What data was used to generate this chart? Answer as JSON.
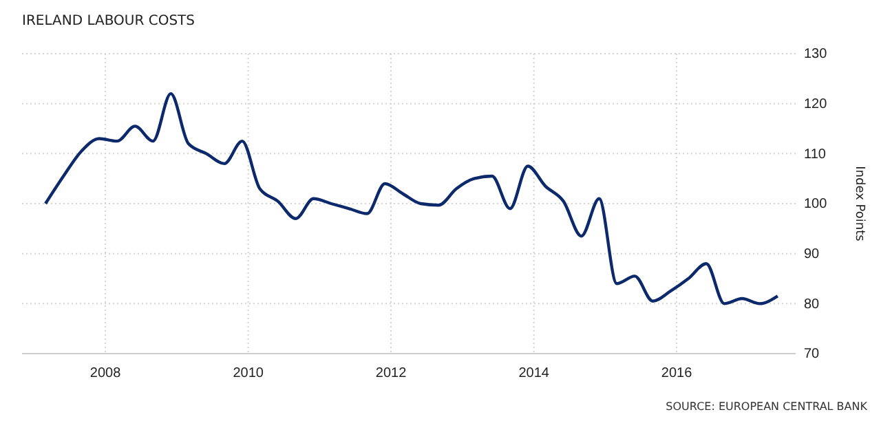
{
  "chart_data": {
    "type": "line",
    "title": "IRELAND LABOUR COSTS",
    "ylabel": "Index Points",
    "x": [
      "2007-03",
      "2007-06",
      "2007-09",
      "2007-12",
      "2008-03",
      "2008-06",
      "2008-09",
      "2008-12",
      "2009-03",
      "2009-06",
      "2009-09",
      "2009-12",
      "2010-03",
      "2010-06",
      "2010-09",
      "2010-12",
      "2011-03",
      "2011-06",
      "2011-09",
      "2011-12",
      "2012-03",
      "2012-06",
      "2012-09",
      "2012-12",
      "2013-03",
      "2013-06",
      "2013-09",
      "2013-12",
      "2014-03",
      "2014-06",
      "2014-09",
      "2014-12",
      "2015-03",
      "2015-06",
      "2015-09",
      "2015-12",
      "2016-03",
      "2016-06",
      "2016-09",
      "2016-12",
      "2017-03",
      "2017-06"
    ],
    "series": [
      {
        "color": "#0c2a6b",
        "values": [
          100,
          105.5,
          110.5,
          113,
          112.5,
          115.5,
          112.5,
          122,
          112,
          110,
          108,
          112.5,
          103,
          100.5,
          97,
          101,
          100,
          99,
          98,
          104,
          102,
          100,
          99.7,
          103,
          105,
          105.5,
          99,
          107.5,
          103.5,
          100.5,
          93.5,
          101,
          84,
          85.5,
          80.5,
          82.5,
          85,
          88,
          80,
          81,
          80,
          81.5
        ]
      }
    ],
    "xlim": [
      "2006-11",
      "2017-09"
    ],
    "xticks": [
      "2008",
      "2010",
      "2012",
      "2014",
      "2016"
    ],
    "ylim": [
      70,
      130
    ],
    "yticks": [
      70,
      80,
      90,
      100,
      110,
      120,
      130
    ],
    "grid": true,
    "line_style": "solid",
    "annotations": [
      "SOURCE: EUROPEAN CENTRAL BANK"
    ]
  }
}
